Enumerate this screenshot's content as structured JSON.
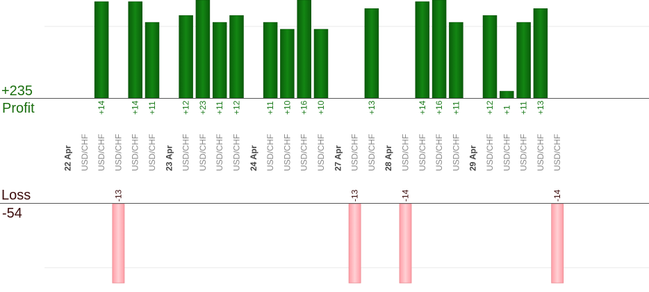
{
  "summary": {
    "profit_total": "+235",
    "profit_label": "Profit",
    "loss_label": "Loss",
    "loss_total": "-54"
  },
  "chart_data": {
    "type": "bar",
    "colors": {
      "profit": "#0e6a0e",
      "loss": "#ffb3b8"
    },
    "slots": [
      {
        "kind": "date",
        "text": "22 Apr"
      },
      {
        "kind": "trade",
        "symbol": "USD/CHF",
        "value": null
      },
      {
        "kind": "trade",
        "symbol": "USD/CHF",
        "value": 14
      },
      {
        "kind": "trade",
        "symbol": "USD/CHF",
        "value": -13
      },
      {
        "kind": "trade",
        "symbol": "USD/CHF",
        "value": 14
      },
      {
        "kind": "trade",
        "symbol": "USD/CHF",
        "value": 11
      },
      {
        "kind": "date",
        "text": "23 Apr"
      },
      {
        "kind": "trade",
        "symbol": "USD/CHF",
        "value": 12
      },
      {
        "kind": "trade",
        "symbol": "USD/CHF",
        "value": 23
      },
      {
        "kind": "trade",
        "symbol": "USD/CHF",
        "value": 11
      },
      {
        "kind": "trade",
        "symbol": "USD/CHF",
        "value": 12
      },
      {
        "kind": "date",
        "text": "24 Apr"
      },
      {
        "kind": "trade",
        "symbol": "USD/CHF",
        "value": 11
      },
      {
        "kind": "trade",
        "symbol": "USD/CHF",
        "value": 10
      },
      {
        "kind": "trade",
        "symbol": "USD/CHF",
        "value": 16
      },
      {
        "kind": "trade",
        "symbol": "USD/CHF",
        "value": 10
      },
      {
        "kind": "date",
        "text": "27 Apr"
      },
      {
        "kind": "trade",
        "symbol": "USD/CHF",
        "value": -13
      },
      {
        "kind": "trade",
        "symbol": "USD/CHF",
        "value": 13
      },
      {
        "kind": "date",
        "text": "28 Apr"
      },
      {
        "kind": "trade",
        "symbol": "USD/CHF",
        "value": -14
      },
      {
        "kind": "trade",
        "symbol": "USD/CHF",
        "value": 14
      },
      {
        "kind": "trade",
        "symbol": "USD/CHF",
        "value": 16
      },
      {
        "kind": "trade",
        "symbol": "USD/CHF",
        "value": 11
      },
      {
        "kind": "date",
        "text": "29 Apr"
      },
      {
        "kind": "trade",
        "symbol": "USD/CHF",
        "value": 12
      },
      {
        "kind": "trade",
        "symbol": "USD/CHF",
        "value": 1
      },
      {
        "kind": "trade",
        "symbol": "USD/CHF",
        "value": 11
      },
      {
        "kind": "trade",
        "symbol": "USD/CHF",
        "value": 13
      },
      {
        "kind": "trade",
        "symbol": "USD/CHF",
        "value": -14
      }
    ]
  }
}
